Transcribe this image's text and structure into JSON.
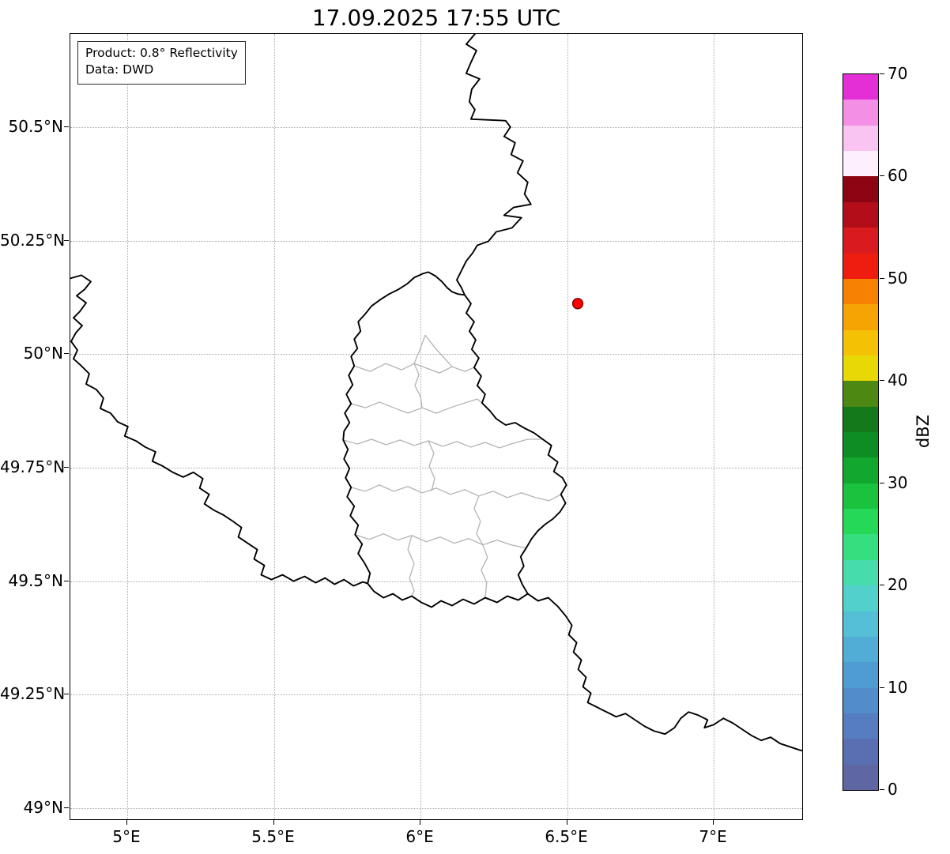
{
  "title": "17.09.2025 17:55 UTC",
  "info_box": {
    "line1": "Product: 0.8° Reflectivity",
    "line2": "Data: DWD"
  },
  "axes": {
    "lon_range": [
      4.806,
      7.307
    ],
    "lat_range": [
      48.972,
      50.705
    ],
    "x_ticks": [
      {
        "value": 5.0,
        "label": "5°E"
      },
      {
        "value": 5.5,
        "label": "5.5°E"
      },
      {
        "value": 6.0,
        "label": "6°E"
      },
      {
        "value": 6.5,
        "label": "6.5°E"
      },
      {
        "value": 7.0,
        "label": "7°E"
      }
    ],
    "y_ticks": [
      {
        "value": 50.5,
        "label": "50.5°N"
      },
      {
        "value": 50.25,
        "label": "50.25°N"
      },
      {
        "value": 50.0,
        "label": "50°N"
      },
      {
        "value": 49.75,
        "label": "49.75°N"
      },
      {
        "value": 49.5,
        "label": "49.5°N"
      },
      {
        "value": 49.25,
        "label": "49.25°N"
      },
      {
        "value": 49.0,
        "label": "49°N"
      }
    ]
  },
  "marker": {
    "lon": 6.54,
    "lat": 50.11,
    "color": "#ff0000",
    "edge_color": "#7a0000"
  },
  "colorbar": {
    "label": "dBZ",
    "min": 0,
    "max": 70,
    "ticks": [
      0,
      10,
      20,
      30,
      40,
      50,
      60,
      70
    ],
    "colors_bottom_to_top": [
      "#5e66a4",
      "#5a6fb2",
      "#567dc0",
      "#528cca",
      "#4f9cd2",
      "#52add6",
      "#54bfd6",
      "#52d0cb",
      "#46dcab",
      "#35df7f",
      "#26d858",
      "#1ac23e",
      "#12a72e",
      "#0d8d23",
      "#14791a",
      "#4d8812",
      "#e8d906",
      "#f4c105",
      "#f6a304",
      "#f68102",
      "#ef1c10",
      "#d91a1e",
      "#b30d1a",
      "#8d0513",
      "#fdeffb",
      "#fac4f2",
      "#f48fe6",
      "#e52fd6"
    ]
  },
  "map": {
    "country_border_color": "#000000",
    "admin_border_color": "#b3b3b3",
    "background": "#ffffff",
    "gridline_color": "#ababab"
  }
}
